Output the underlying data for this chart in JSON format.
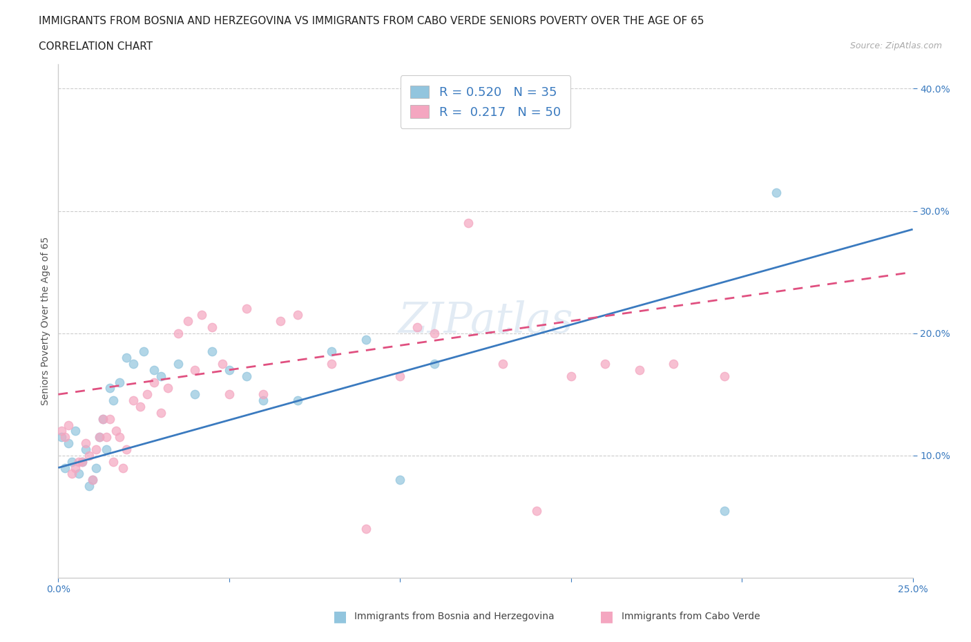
{
  "title_line1": "IMMIGRANTS FROM BOSNIA AND HERZEGOVINA VS IMMIGRANTS FROM CABO VERDE SENIORS POVERTY OVER THE AGE OF 65",
  "title_line2": "CORRELATION CHART",
  "source": "Source: ZipAtlas.com",
  "ylabel": "Seniors Poverty Over the Age of 65",
  "xlim": [
    0.0,
    0.25
  ],
  "ylim": [
    0.0,
    0.42
  ],
  "bosnia_color": "#92c5de",
  "caboverde_color": "#f4a6c0",
  "bosnia_line_color": "#3a7abf",
  "caboverde_line_color": "#e05080",
  "R_bosnia": 0.52,
  "N_bosnia": 35,
  "R_caboverde": 0.217,
  "N_caboverde": 50,
  "legend_R_color": "#3a7abf",
  "watermark": "ZIPatlas",
  "bosnia_x": [
    0.001,
    0.002,
    0.003,
    0.004,
    0.005,
    0.006,
    0.007,
    0.008,
    0.009,
    0.01,
    0.011,
    0.012,
    0.013,
    0.014,
    0.015,
    0.016,
    0.018,
    0.02,
    0.022,
    0.025,
    0.028,
    0.03,
    0.035,
    0.04,
    0.045,
    0.05,
    0.055,
    0.06,
    0.07,
    0.08,
    0.09,
    0.1,
    0.11,
    0.195,
    0.21
  ],
  "bosnia_y": [
    0.115,
    0.09,
    0.11,
    0.095,
    0.12,
    0.085,
    0.095,
    0.105,
    0.075,
    0.08,
    0.09,
    0.115,
    0.13,
    0.105,
    0.155,
    0.145,
    0.16,
    0.18,
    0.175,
    0.185,
    0.17,
    0.165,
    0.175,
    0.15,
    0.185,
    0.17,
    0.165,
    0.145,
    0.145,
    0.185,
    0.195,
    0.08,
    0.175,
    0.055,
    0.315
  ],
  "caboverde_x": [
    0.001,
    0.002,
    0.003,
    0.004,
    0.005,
    0.006,
    0.007,
    0.008,
    0.009,
    0.01,
    0.011,
    0.012,
    0.013,
    0.014,
    0.015,
    0.016,
    0.017,
    0.018,
    0.019,
    0.02,
    0.022,
    0.024,
    0.026,
    0.028,
    0.03,
    0.032,
    0.035,
    0.038,
    0.04,
    0.042,
    0.045,
    0.048,
    0.05,
    0.055,
    0.06,
    0.065,
    0.07,
    0.08,
    0.09,
    0.1,
    0.105,
    0.11,
    0.12,
    0.13,
    0.14,
    0.15,
    0.16,
    0.17,
    0.18,
    0.195
  ],
  "caboverde_y": [
    0.12,
    0.115,
    0.125,
    0.085,
    0.09,
    0.095,
    0.095,
    0.11,
    0.1,
    0.08,
    0.105,
    0.115,
    0.13,
    0.115,
    0.13,
    0.095,
    0.12,
    0.115,
    0.09,
    0.105,
    0.145,
    0.14,
    0.15,
    0.16,
    0.135,
    0.155,
    0.2,
    0.21,
    0.17,
    0.215,
    0.205,
    0.175,
    0.15,
    0.22,
    0.15,
    0.21,
    0.215,
    0.175,
    0.04,
    0.165,
    0.205,
    0.2,
    0.29,
    0.175,
    0.055,
    0.165,
    0.175,
    0.17,
    0.175,
    0.165
  ],
  "bosnia_line_y0": 0.09,
  "bosnia_line_y1": 0.285,
  "caboverde_line_y0": 0.15,
  "caboverde_line_y1": 0.25
}
